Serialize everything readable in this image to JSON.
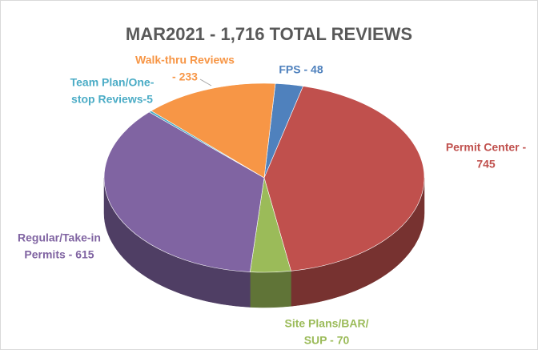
{
  "chart_data": {
    "type": "pie3d",
    "title": "MAR2021 - 1,716 TOTAL REVIEWS",
    "values": [
      48,
      745,
      70,
      615,
      5,
      233
    ],
    "value_labels": [
      [
        "FPS - 48"
      ],
      [
        "Permit Center -",
        "745"
      ],
      [
        "Site Plans/BAR/",
        "SUP - 70"
      ],
      [
        "Regular/Take-in",
        "Permits - 615"
      ],
      [
        "Team Plan/One-",
        "stop Reviews-5"
      ],
      [
        "Walk-thru Reviews",
        "- 233"
      ]
    ],
    "colors": [
      "#4f81bd",
      "#c0504d",
      "#9bbb59",
      "#8064a2",
      "#4bacc6",
      "#f79646"
    ]
  }
}
